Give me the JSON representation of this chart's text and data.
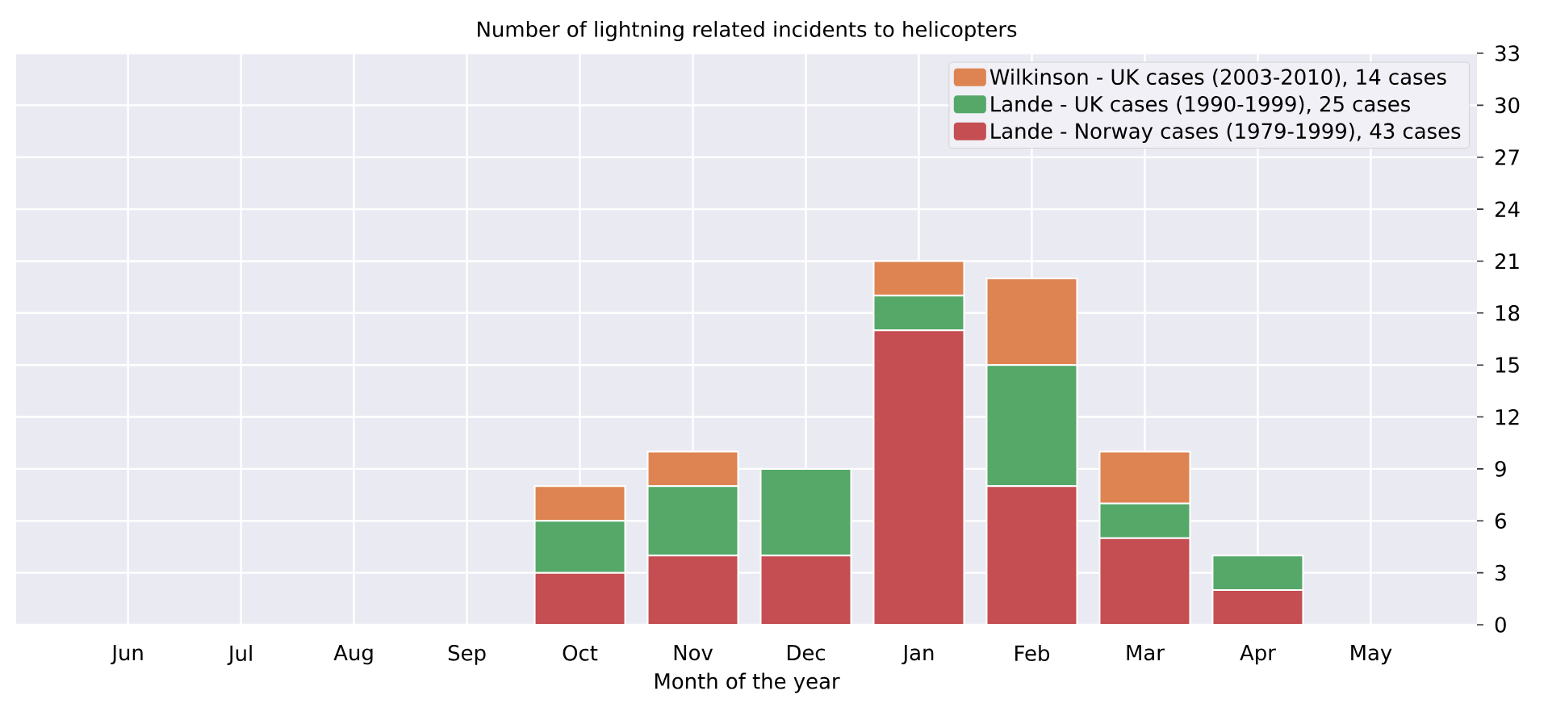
{
  "chart_data": {
    "type": "bar",
    "title": "Number of lightning related incidents to helicopters",
    "xlabel": "Month of the year",
    "categories": [
      "Jun",
      "Jul",
      "Aug",
      "Sep",
      "Oct",
      "Nov",
      "Dec",
      "Jan",
      "Feb",
      "Mar",
      "Apr",
      "May"
    ],
    "series": [
      {
        "name": "Lande - Norway cases (1979-1999), 43 cases",
        "color": "#c44e52",
        "values": [
          0,
          0,
          0,
          0,
          3,
          4,
          4,
          17,
          8,
          5,
          2,
          0
        ]
      },
      {
        "name": "Lande - UK cases (1990-1999), 25 cases",
        "color": "#55a868",
        "values": [
          0,
          0,
          0,
          0,
          3,
          4,
          5,
          2,
          7,
          2,
          2,
          0
        ]
      },
      {
        "name": "Wilkinson - UK cases (2003-2010), 14 cases",
        "color": "#dd8452",
        "values": [
          0,
          0,
          0,
          0,
          2,
          2,
          0,
          2,
          5,
          3,
          0,
          0
        ]
      }
    ],
    "stacked": true,
    "ylim": [
      0,
      33
    ],
    "yticks": [
      0,
      3,
      6,
      9,
      12,
      15,
      18,
      21,
      24,
      27,
      30,
      33
    ],
    "grid": true,
    "legend": "top right"
  }
}
